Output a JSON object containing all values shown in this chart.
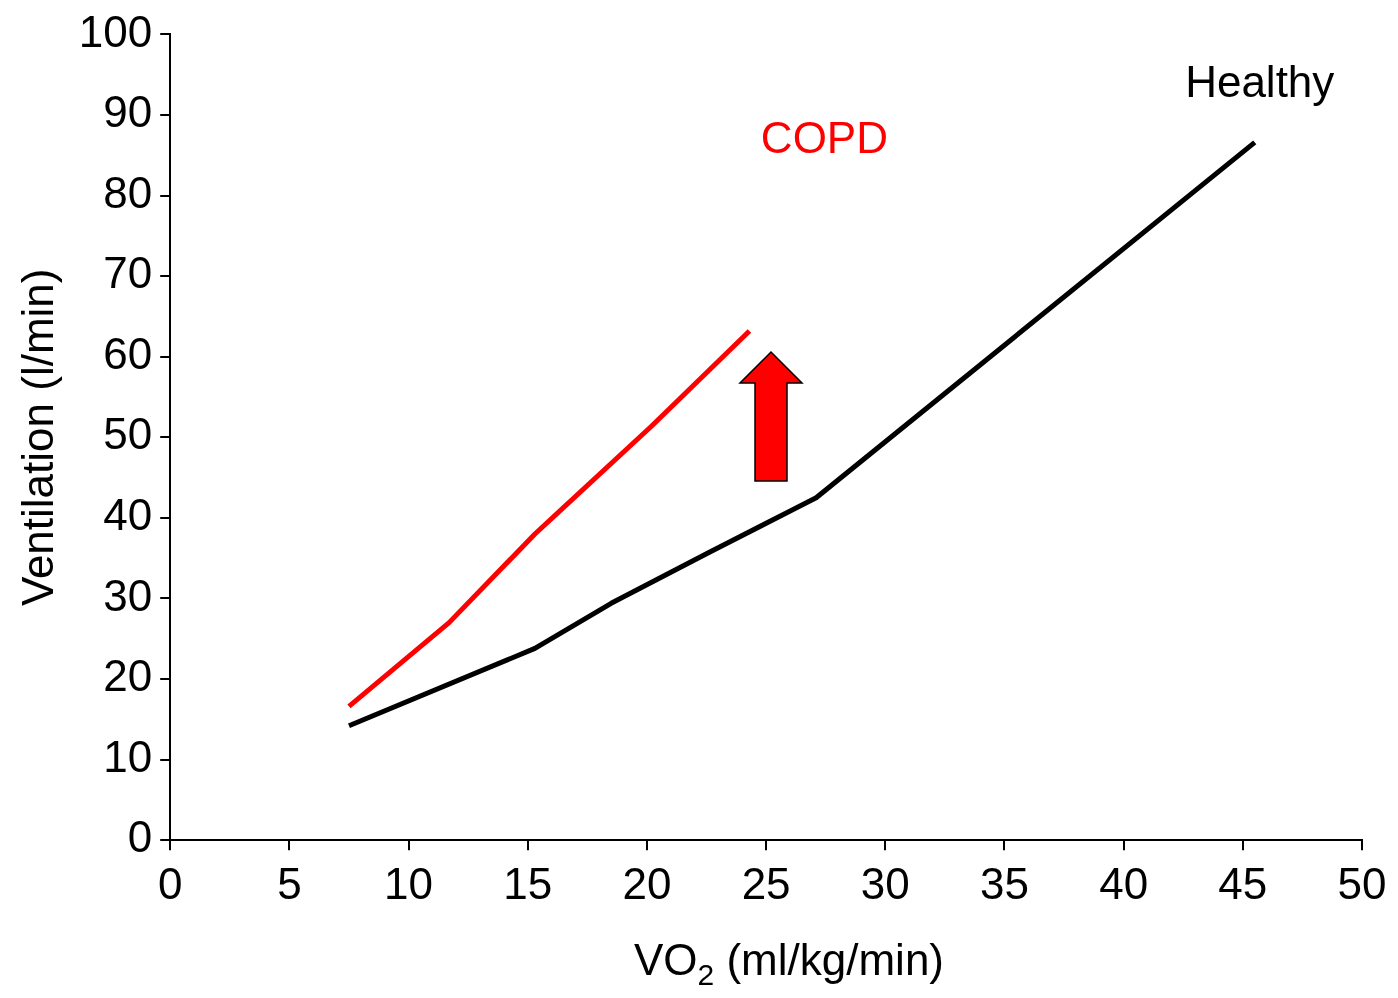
{
  "chart_data": {
    "type": "line",
    "xlabel": "VO$_{2}$ (ml/kg/min)",
    "ylabel": "Ventilation (l/min)",
    "xlim": [
      0,
      50
    ],
    "xticks": [
      0,
      5,
      10,
      15,
      20,
      25,
      30,
      35,
      40,
      45,
      50
    ],
    "ylim": [
      0,
      100
    ],
    "yticks": [
      0,
      10,
      20,
      30,
      40,
      50,
      60,
      70,
      80,
      90,
      100
    ],
    "grid": false,
    "legend": false,
    "marker": "none",
    "series": [
      {
        "name": "COPD",
        "color": "#ff0000",
        "x": [
          7.5,
          11.7,
          15.3,
          20.2,
          24.3
        ],
        "values": [
          16.6,
          27.0,
          38.0,
          51.4,
          63.2
        ]
      },
      {
        "name": "Healthy",
        "color": "#000000",
        "x": [
          7.5,
          15.3,
          18.5,
          22.6,
          27.1,
          45.5
        ],
        "values": [
          14.2,
          23.8,
          29.4,
          35.7,
          42.5,
          86.6
        ]
      }
    ]
  }
}
